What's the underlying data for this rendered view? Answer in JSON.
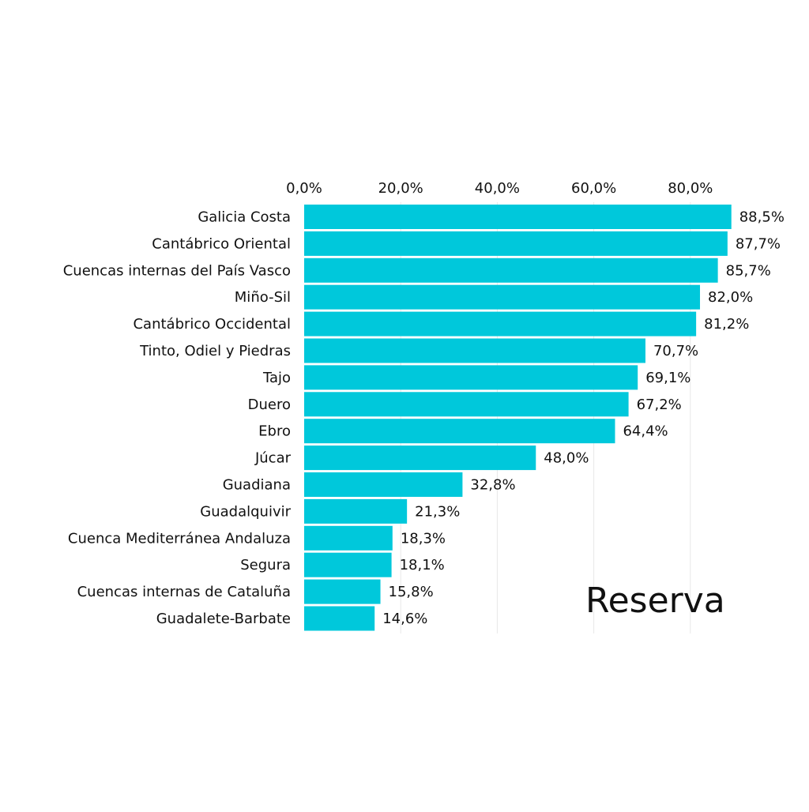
{
  "chart_data": {
    "type": "bar",
    "orientation": "horizontal",
    "title": "Reserva",
    "xlabel": "",
    "ylabel": "",
    "xlim": [
      0,
      100
    ],
    "x_ticks": [
      "0,0%",
      "20,0%",
      "40,0%",
      "60,0%",
      "80,0%"
    ],
    "x_tick_values": [
      0,
      20,
      40,
      60,
      80
    ],
    "axis_position": "top",
    "grid": true,
    "legend": "none",
    "categories": [
      "Galicia Costa",
      "Cantábrico Oriental",
      "Cuencas internas del País Vasco",
      "Miño-Sil",
      "Cantábrico Occidental",
      "Tinto, Odiel y Piedras",
      "Tajo",
      "Duero",
      "Ebro",
      "Júcar",
      "Guadiana",
      "Guadalquivir",
      "Cuenca Mediterránea Andaluza",
      "Segura",
      "Cuencas internas de Cataluña",
      "Guadalete-Barbate"
    ],
    "values": [
      88.5,
      87.7,
      85.7,
      82.0,
      81.2,
      70.7,
      69.1,
      67.2,
      64.4,
      48.0,
      32.8,
      21.3,
      18.3,
      18.1,
      15.8,
      14.6
    ],
    "value_labels": [
      "88,5%",
      "87,7%",
      "85,7%",
      "82,0%",
      "81,2%",
      "70,7%",
      "69,1%",
      "67,2%",
      "64,4%",
      "48,0%",
      "32,8%",
      "21,3%",
      "18,3%",
      "18,1%",
      "15,8%",
      "14,6%"
    ],
    "colors": {
      "bar": "#00c8db",
      "grid": "#e8e8e8",
      "text": "#111111",
      "background": "#ffffff"
    }
  }
}
